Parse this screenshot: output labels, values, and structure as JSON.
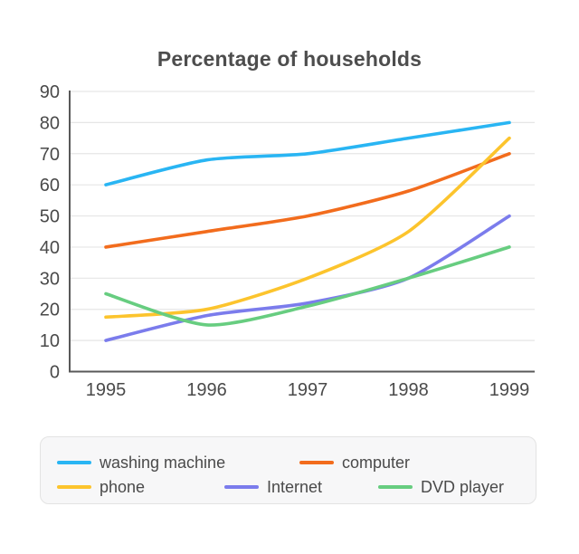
{
  "title": "Percentage of households",
  "chart_data": {
    "type": "line",
    "categories": [
      "1995",
      "1996",
      "1997",
      "1998",
      "1999"
    ],
    "series": [
      {
        "name": "washing machine",
        "color": "#29b5f3",
        "values": [
          60,
          68,
          70,
          75,
          80
        ]
      },
      {
        "name": "computer",
        "color": "#f26c1d",
        "values": [
          40,
          45,
          50,
          58,
          70
        ]
      },
      {
        "name": "phone",
        "color": "#fcc42d",
        "values": [
          17.5,
          20,
          30,
          45,
          75
        ]
      },
      {
        "name": "Internet",
        "color": "#7b7cec",
        "values": [
          10,
          18,
          22,
          30,
          50
        ]
      },
      {
        "name": "DVD player",
        "color": "#67cd80",
        "values": [
          25,
          15,
          21,
          30,
          40
        ]
      }
    ],
    "title": "Percentage of households",
    "xlabel": "",
    "ylabel": "",
    "ylim": [
      0,
      90
    ],
    "ytick_step": 10,
    "grid": true,
    "legend_position": "bottom"
  },
  "colors": {
    "text": "#4a4a4a",
    "title_text": "#4d4d4d",
    "gridline": "#e6e6e6",
    "axis_spine": "#595959",
    "legend_background": "#f7f7f8",
    "legend_border": "#e3e3e3",
    "page_background": "#ffffff"
  }
}
